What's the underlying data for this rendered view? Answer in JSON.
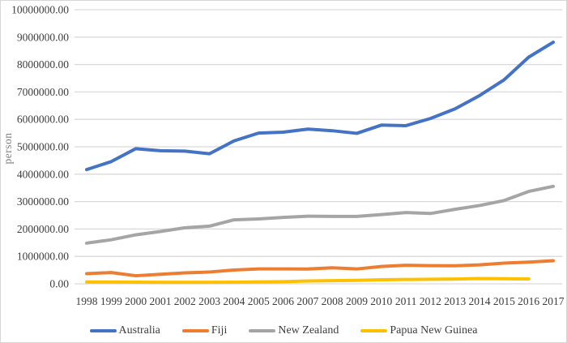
{
  "chart_data": {
    "type": "line",
    "title": "",
    "xlabel": "",
    "ylabel": "person",
    "ylim": [
      0,
      10000000
    ],
    "grid": "horizontal",
    "legend_position": "bottom",
    "gridline_color": "#D9D9D9",
    "y_ticks": [
      "0.00",
      "1000000.00",
      "2000000.00",
      "3000000.00",
      "4000000.00",
      "5000000.00",
      "6000000.00",
      "7000000.00",
      "8000000.00",
      "9000000.00",
      "10000000.00"
    ],
    "categories": [
      1998,
      1999,
      2000,
      2001,
      2002,
      2003,
      2004,
      2005,
      2006,
      2007,
      2008,
      2009,
      2010,
      2011,
      2012,
      2013,
      2014,
      2015,
      2016,
      2017
    ],
    "series": [
      {
        "name": "Australia",
        "color": "#4472C4",
        "values": [
          4167000,
          4459000,
          4931000,
          4856000,
          4841000,
          4746000,
          5215000,
          5499000,
          5532000,
          5644000,
          5586000,
          5490000,
          5790000,
          5770000,
          6032000,
          6382000,
          6868000,
          7444000,
          8269000,
          8815000
        ]
      },
      {
        "name": "Fiji",
        "color": "#ED7D31",
        "values": [
          371000,
          410000,
          294000,
          348000,
          398000,
          431000,
          504000,
          545000,
          545000,
          540000,
          585000,
          542000,
          632000,
          675000,
          661000,
          658000,
          693000,
          755000,
          792000,
          843000
        ]
      },
      {
        "name": "New Zealand",
        "color": "#A5A5A5",
        "values": [
          1485000,
          1607000,
          1787000,
          1909000,
          2045000,
          2104000,
          2334000,
          2366000,
          2422000,
          2466000,
          2459000,
          2458000,
          2525000,
          2601000,
          2565000,
          2718000,
          2857000,
          3039000,
          3370000,
          3555000
        ]
      },
      {
        "name": "Papua New Guinea",
        "color": "#FFC000",
        "values": [
          67000,
          67000,
          58000,
          54000,
          54000,
          56000,
          59000,
          69000,
          78000,
          104000,
          114000,
          125000,
          147000,
          158000,
          168000,
          174000,
          191000,
          184000,
          179000,
          null
        ]
      }
    ]
  }
}
